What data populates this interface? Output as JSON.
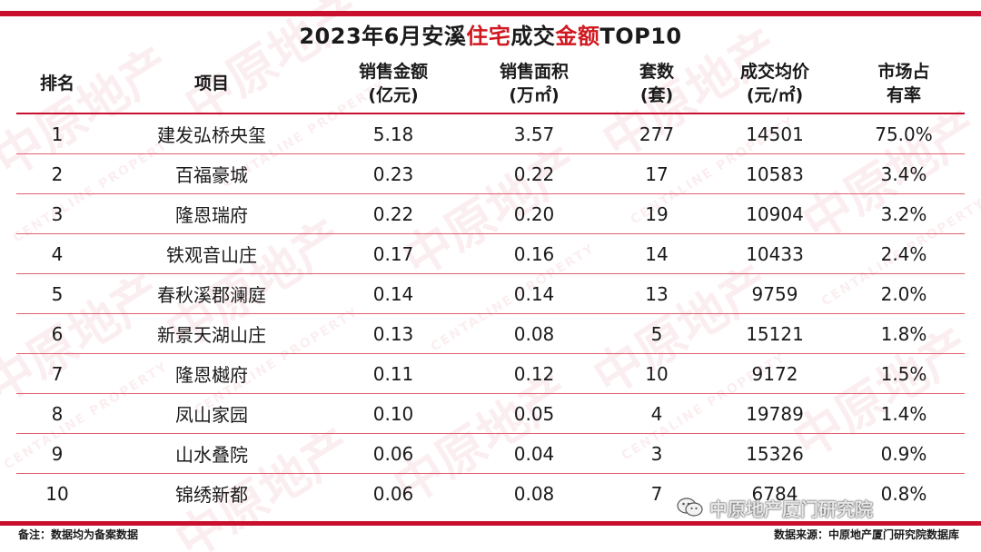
{
  "title": {
    "part1": "2023年6月安溪",
    "part2": "住宅",
    "part3": "成交",
    "part4": "金额",
    "part5": "TOP10"
  },
  "accent_color": "#c8102e",
  "highlight_color": "#d01820",
  "table": {
    "headers": {
      "rank": "排名",
      "project": "项目",
      "amount_line1": "销售金额",
      "amount_line2": "(亿元)",
      "area_line1": "销售面积",
      "area_line2": "(万㎡)",
      "units_line1": "套数",
      "units_line2": "(套)",
      "price_line1": "成交均价",
      "price_line2": "(元/㎡)",
      "share_line1": "市场占",
      "share_line2": "有率"
    },
    "rows": [
      {
        "rank": "1",
        "project": "建发弘桥央玺",
        "amount": "5.18",
        "area": "3.57",
        "units": "277",
        "price": "14501",
        "share": "75.0%"
      },
      {
        "rank": "2",
        "project": "百福豪城",
        "amount": "0.23",
        "area": "0.22",
        "units": "17",
        "price": "10583",
        "share": "3.4%"
      },
      {
        "rank": "3",
        "project": "隆恩瑞府",
        "amount": "0.22",
        "area": "0.20",
        "units": "19",
        "price": "10904",
        "share": "3.2%"
      },
      {
        "rank": "4",
        "project": "铁观音山庄",
        "amount": "0.17",
        "area": "0.16",
        "units": "14",
        "price": "10433",
        "share": "2.4%"
      },
      {
        "rank": "5",
        "project": "春秋溪郡澜庭",
        "amount": "0.14",
        "area": "0.14",
        "units": "13",
        "price": "9759",
        "share": "2.0%"
      },
      {
        "rank": "6",
        "project": "新景天湖山庄",
        "amount": "0.13",
        "area": "0.08",
        "units": "5",
        "price": "15121",
        "share": "1.8%"
      },
      {
        "rank": "7",
        "project": "隆恩樾府",
        "amount": "0.11",
        "area": "0.12",
        "units": "10",
        "price": "9172",
        "share": "1.5%"
      },
      {
        "rank": "8",
        "project": "凤山家园",
        "amount": "0.10",
        "area": "0.05",
        "units": "4",
        "price": "19789",
        "share": "1.4%"
      },
      {
        "rank": "9",
        "project": "山水叠院",
        "amount": "0.06",
        "area": "0.04",
        "units": "3",
        "price": "15326",
        "share": "0.9%"
      },
      {
        "rank": "10",
        "project": "锦绣新都",
        "amount": "0.06",
        "area": "0.08",
        "units": "7",
        "price": "6784",
        "share": "0.8%"
      }
    ]
  },
  "footer": {
    "note": "备注：数据均为备案数据",
    "source": "数据来源：中原地产厦门研究院数据库"
  },
  "account": {
    "name": "中原地产厦门研究院",
    "icon": "wechat-icon"
  },
  "watermark": {
    "main": "中原地产",
    "sub": "CENTALINE PROPERTY"
  }
}
